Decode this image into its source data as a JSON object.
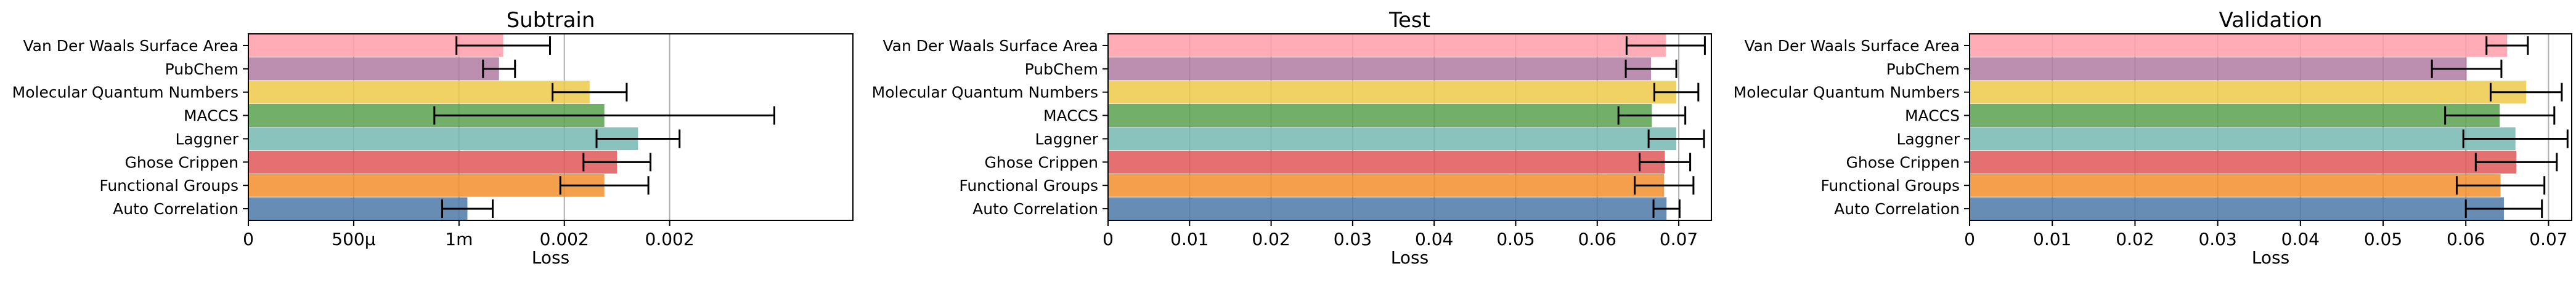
{
  "chart_data": [
    {
      "type": "bar",
      "orientation": "horizontal",
      "title": "Subtrain",
      "xlabel": "Loss",
      "ylabel": "",
      "xlim": [
        0,
        0.00287
      ],
      "xticks": [
        0,
        0.0005,
        0.001,
        0.0015,
        0.002
      ],
      "xtick_labels": [
        "0",
        "500μ",
        "1m",
        "0.002",
        "0.002"
      ],
      "grid": "x",
      "categories": [
        "Van Der Waals Surface Area",
        "PubChem",
        "Molecular Quantum Numbers",
        "MACCS",
        "Laggner",
        "Ghose Crippen",
        "Functional Groups",
        "Auto Correlation"
      ],
      "values": [
        0.00121,
        0.00119,
        0.00162,
        0.00169,
        0.00185,
        0.00175,
        0.00169,
        0.00104
      ],
      "errors": [
        0.000222,
        7.6e-05,
        0.000176,
        0.000807,
        0.000197,
        0.000159,
        0.000209,
        0.00012
      ]
    },
    {
      "type": "bar",
      "orientation": "horizontal",
      "title": "Test",
      "xlabel": "Loss",
      "ylabel": "",
      "xlim": [
        0,
        0.074
      ],
      "xticks": [
        0,
        0.01,
        0.02,
        0.03,
        0.04,
        0.05,
        0.06,
        0.07
      ],
      "xtick_labels": [
        "0",
        "0.01",
        "0.02",
        "0.03",
        "0.04",
        "0.05",
        "0.06",
        "0.07"
      ],
      "grid": "x",
      "categories": [
        "Van Der Waals Surface Area",
        "PubChem",
        "Molecular Quantum Numbers",
        "MACCS",
        "Laggner",
        "Ghose Crippen",
        "Functional Groups",
        "Auto Correlation"
      ],
      "values": [
        0.0684,
        0.0666,
        0.0697,
        0.0667,
        0.0697,
        0.0683,
        0.0682,
        0.0685
      ],
      "errors": [
        0.0048,
        0.0031,
        0.0027,
        0.0041,
        0.0034,
        0.0031,
        0.0036,
        0.0016
      ]
    },
    {
      "type": "bar",
      "orientation": "horizontal",
      "title": "Validation",
      "xlabel": "Loss",
      "ylabel": "",
      "xlim": [
        0,
        0.0728
      ],
      "xticks": [
        0,
        0.01,
        0.02,
        0.03,
        0.04,
        0.05,
        0.06,
        0.07
      ],
      "xtick_labels": [
        "0",
        "0.01",
        "0.02",
        "0.03",
        "0.04",
        "0.05",
        "0.06",
        "0.07"
      ],
      "grid": "x",
      "categories": [
        "Van Der Waals Surface Area",
        "PubChem",
        "Molecular Quantum Numbers",
        "MACCS",
        "Laggner",
        "Ghose Crippen",
        "Functional Groups",
        "Auto Correlation"
      ],
      "values": [
        0.065,
        0.0601,
        0.0673,
        0.0641,
        0.066,
        0.0661,
        0.0642,
        0.0646
      ],
      "errors": [
        0.0025,
        0.0042,
        0.0043,
        0.0066,
        0.0063,
        0.0049,
        0.0053,
        0.0046
      ]
    }
  ],
  "bar_colors": [
    "#ff9daa",
    "#b07aa1",
    "#edc948",
    "#59a14f",
    "#76b7b2",
    "#e15759",
    "#f28e2b",
    "#4e79a7"
  ],
  "bar_alpha": 0.85,
  "grid_color": "#b0b0b0",
  "axes_color": "#000000"
}
